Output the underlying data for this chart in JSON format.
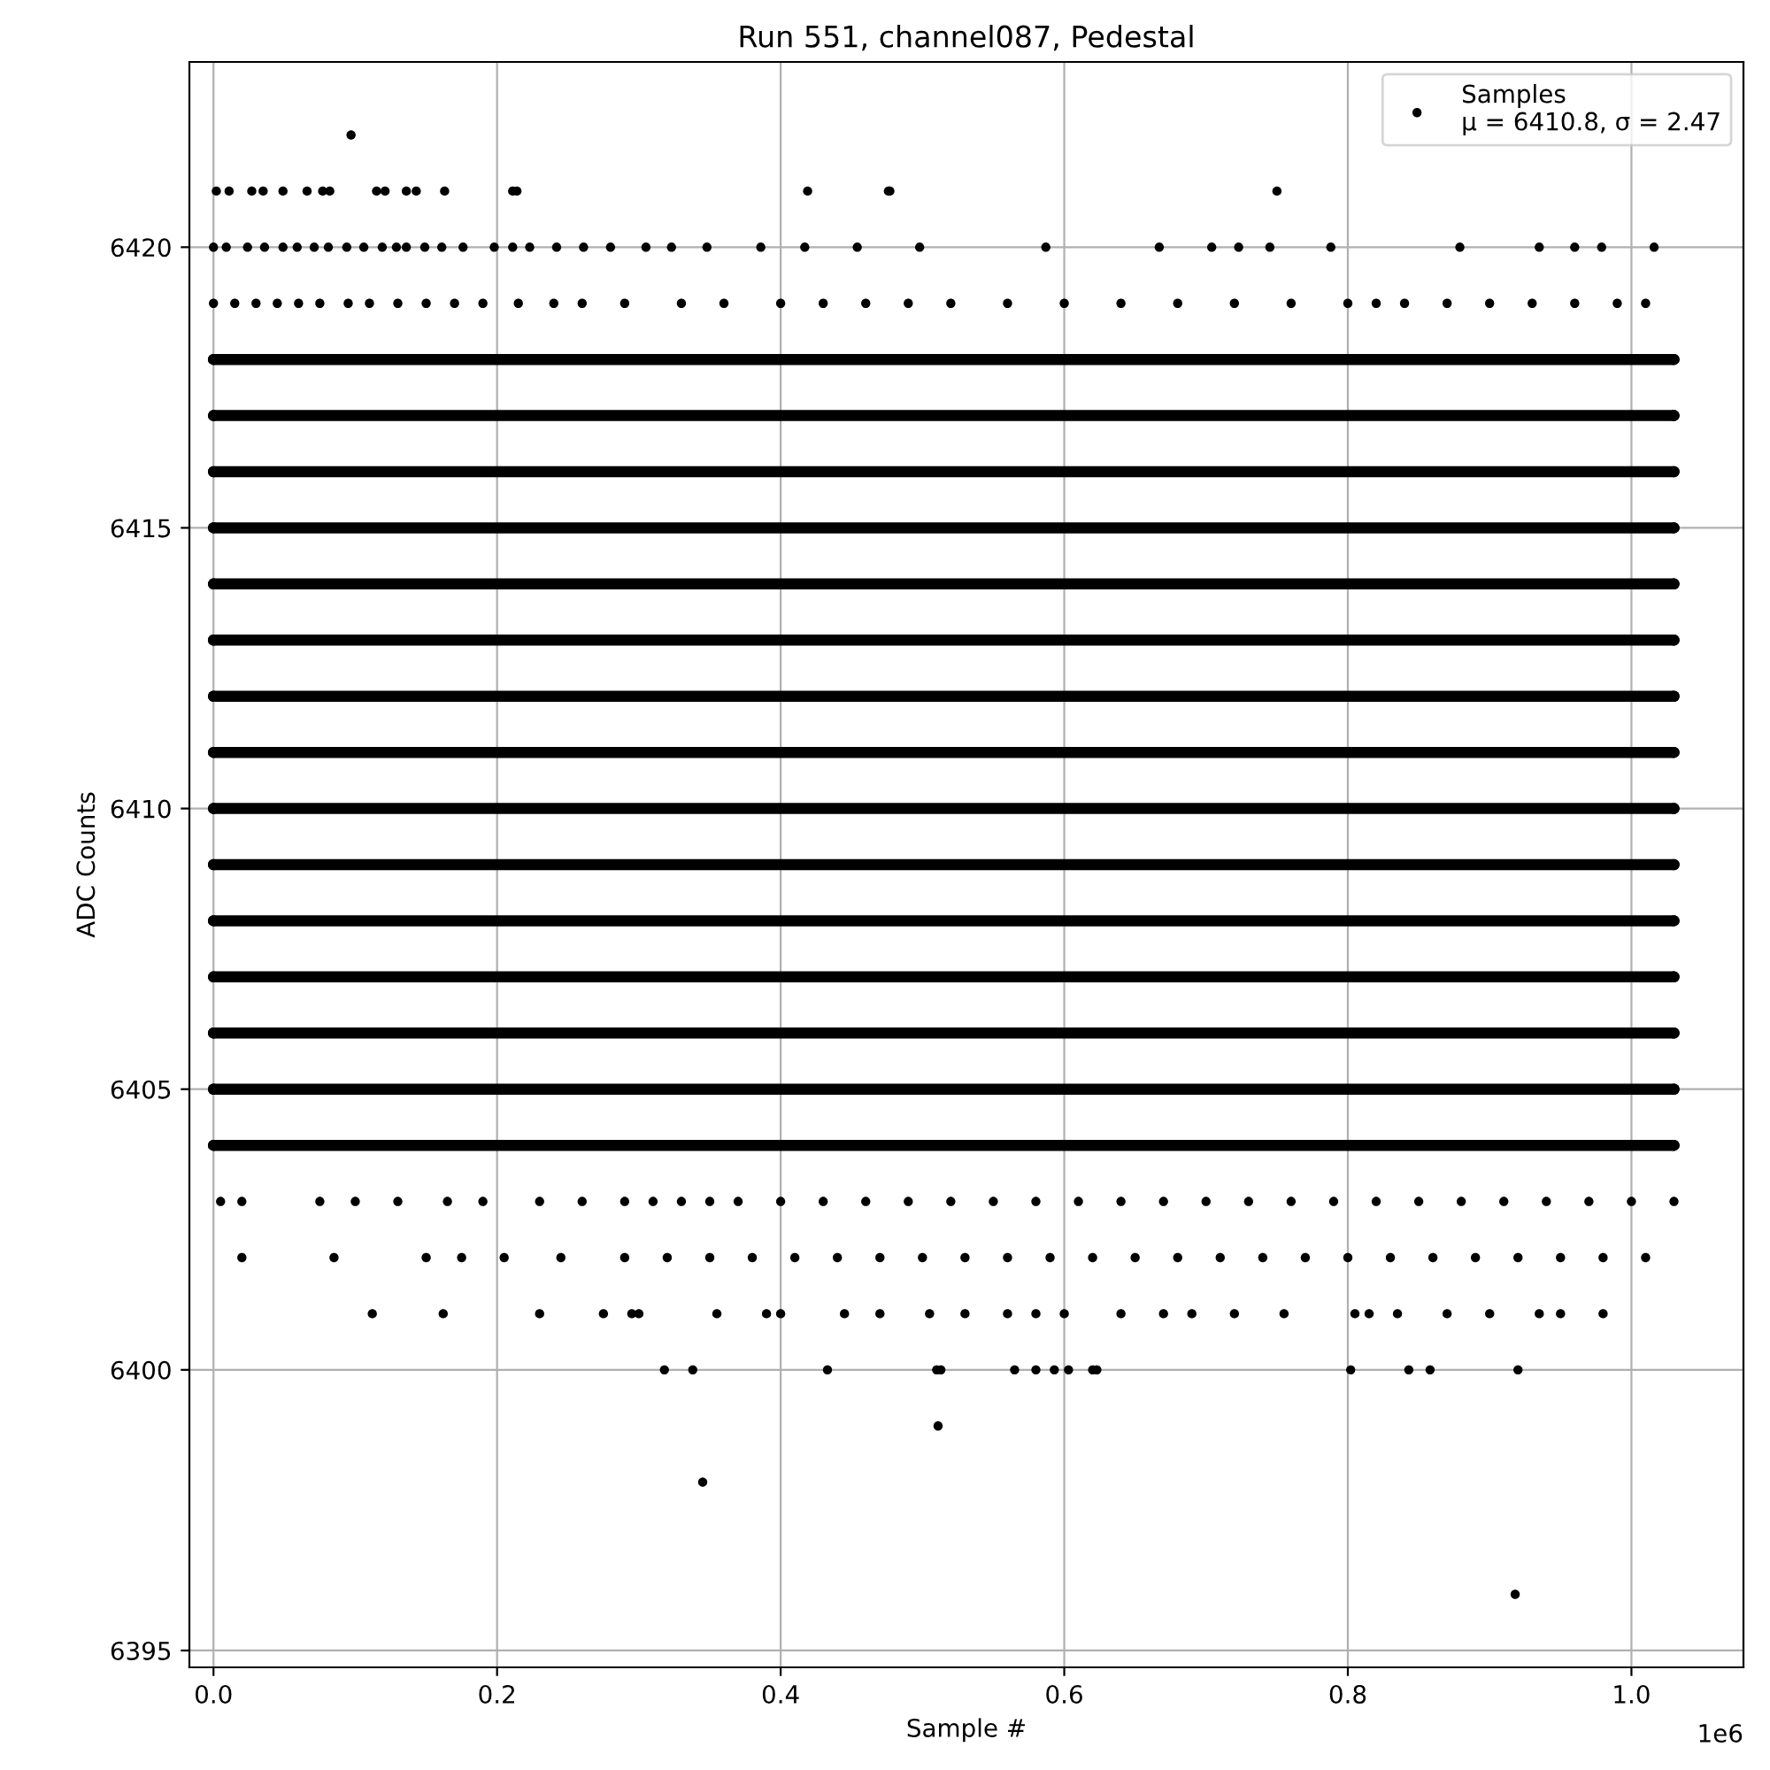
{
  "chart_data": {
    "type": "scatter",
    "title": "Run 551, channel087, Pedestal",
    "xlabel": "Sample #",
    "ylabel": "ADC Counts",
    "xlim": [
      -0.017,
      1.079
    ],
    "ylim": [
      6394.7,
      6423.3
    ],
    "xticks": [
      {
        "value": 0,
        "label": "0.0"
      },
      0.2,
      0.4,
      0.6,
      0.8,
      {
        "value": 1,
        "label": "1.0"
      }
    ],
    "yticks": [
      6395,
      6400,
      6405,
      6410,
      6415,
      6420
    ],
    "annotations": [
      "1e6"
    ],
    "grid": true,
    "legend": "top right",
    "marker": "circle",
    "series": [
      {
        "name": "Samples\nμ = 6410.8, σ = 2.47",
        "color": "#000000",
        "x": [
          0.097,
          0.002,
          0.011,
          0.027,
          0.035,
          0.049,
          0.066,
          0.077,
          0.082,
          0.115,
          0.121,
          0.136,
          0.143,
          0.163,
          0.211,
          0.214,
          0.419,
          0.476,
          0.477,
          0.75,
          0,
          0.009,
          0.024,
          0.036,
          0.049,
          0.059,
          0.071,
          0.081,
          0.094,
          0.106,
          0.119,
          0.129,
          0.136,
          0.149,
          0.161,
          0.176,
          0.198,
          0.211,
          0.223,
          0.242,
          0.261,
          0.28,
          0.305,
          0.323,
          0.348,
          0.386,
          0.417,
          0.454,
          0.498,
          0.587,
          0.667,
          0.704,
          0.723,
          0.745,
          0.788,
          0.879,
          0.935,
          0.96,
          0.979,
          1.016,
          0,
          0.015,
          0.03,
          0.045,
          0.06,
          0.075,
          0.095,
          0.11,
          0.13,
          0.15,
          0.17,
          0.19,
          0.215,
          0.24,
          0.26,
          0.29,
          0.33,
          0.36,
          0.4,
          0.43,
          0.46,
          0.49,
          0.52,
          0.56,
          0.6,
          0.64,
          0.68,
          0.72,
          0.76,
          0.8,
          0.82,
          0.84,
          0.87,
          0.9,
          0.93,
          0.96,
          0.99,
          1.01,
          0.005,
          0.02,
          0.075,
          0.1,
          0.13,
          0.165,
          0.19,
          0.23,
          0.26,
          0.29,
          0.31,
          0.33,
          0.35,
          0.37,
          0.4,
          0.43,
          0.46,
          0.49,
          0.52,
          0.55,
          0.58,
          0.61,
          0.64,
          0.67,
          0.7,
          0.73,
          0.76,
          0.79,
          0.82,
          0.85,
          0.88,
          0.91,
          0.94,
          0.97,
          1.0,
          1.03,
          0.02,
          0.085,
          0.15,
          0.175,
          0.205,
          0.245,
          0.29,
          0.32,
          0.35,
          0.38,
          0.41,
          0.44,
          0.47,
          0.5,
          0.53,
          0.56,
          0.59,
          0.62,
          0.65,
          0.68,
          0.71,
          0.74,
          0.77,
          0.8,
          0.83,
          0.86,
          0.89,
          0.92,
          0.95,
          0.98,
          1.01,
          0.112,
          0.162,
          0.23,
          0.275,
          0.295,
          0.3,
          0.355,
          0.39,
          0.4,
          0.445,
          0.47,
          0.505,
          0.53,
          0.56,
          0.58,
          0.6,
          0.64,
          0.67,
          0.69,
          0.72,
          0.755,
          0.805,
          0.815,
          0.835,
          0.87,
          0.9,
          0.935,
          0.95,
          0.98,
          0.318,
          0.338,
          0.433,
          0.51,
          0.513,
          0.565,
          0.58,
          0.593,
          0.603,
          0.62,
          0.623,
          0.802,
          0.843,
          0.858,
          0.92,
          0.511,
          0.345,
          0.918
        ],
        "values": [
          6422,
          6421,
          6421,
          6421,
          6421,
          6421,
          6421,
          6421,
          6421,
          6421,
          6421,
          6421,
          6421,
          6421,
          6421,
          6421,
          6421,
          6421,
          6421,
          6421,
          6420,
          6420,
          6420,
          6420,
          6420,
          6420,
          6420,
          6420,
          6420,
          6420,
          6420,
          6420,
          6420,
          6420,
          6420,
          6420,
          6420,
          6420,
          6420,
          6420,
          6420,
          6420,
          6420,
          6420,
          6420,
          6420,
          6420,
          6420,
          6420,
          6420,
          6420,
          6420,
          6420,
          6420,
          6420,
          6420,
          6420,
          6420,
          6420,
          6420,
          6419,
          6419,
          6419,
          6419,
          6419,
          6419,
          6419,
          6419,
          6419,
          6419,
          6419,
          6419,
          6419,
          6419,
          6419,
          6419,
          6419,
          6419,
          6419,
          6419,
          6419,
          6419,
          6419,
          6419,
          6419,
          6419,
          6419,
          6419,
          6419,
          6419,
          6419,
          6419,
          6419,
          6419,
          6419,
          6419,
          6419,
          6419,
          6403,
          6403,
          6403,
          6403,
          6403,
          6403,
          6403,
          6403,
          6403,
          6403,
          6403,
          6403,
          6403,
          6403,
          6403,
          6403,
          6403,
          6403,
          6403,
          6403,
          6403,
          6403,
          6403,
          6403,
          6403,
          6403,
          6403,
          6403,
          6403,
          6403,
          6403,
          6403,
          6403,
          6403,
          6403,
          6403,
          6402,
          6402,
          6402,
          6402,
          6402,
          6402,
          6402,
          6402,
          6402,
          6402,
          6402,
          6402,
          6402,
          6402,
          6402,
          6402,
          6402,
          6402,
          6402,
          6402,
          6402,
          6402,
          6402,
          6402,
          6402,
          6402,
          6402,
          6402,
          6402,
          6402,
          6402,
          6401,
          6401,
          6401,
          6401,
          6401,
          6401,
          6401,
          6401,
          6401,
          6401,
          6401,
          6401,
          6401,
          6401,
          6401,
          6401,
          6401,
          6401,
          6401,
          6401,
          6401,
          6401,
          6401,
          6401,
          6401,
          6401,
          6401,
          6401,
          6401,
          6400,
          6400,
          6400,
          6400,
          6400,
          6400,
          6400,
          6400,
          6400,
          6400,
          6400,
          6400,
          6400,
          6400,
          6400,
          6399,
          6398,
          6396
        ]
      },
      {
        "color": "#000000",
        "type": "line",
        "x": [
          0,
          1.03
        ],
        "values": [
          6404,
          6404
        ]
      },
      {
        "color": "#000000",
        "type": "line",
        "x": [
          0,
          1.03
        ],
        "values": [
          6405,
          6405
        ]
      },
      {
        "color": "#000000",
        "type": "line",
        "x": [
          0,
          1.03
        ],
        "values": [
          6406,
          6406
        ]
      },
      {
        "color": "#000000",
        "type": "line",
        "x": [
          0,
          1.03
        ],
        "values": [
          6407,
          6407
        ]
      },
      {
        "color": "#000000",
        "type": "line",
        "x": [
          0,
          1.03
        ],
        "values": [
          6408,
          6408
        ]
      },
      {
        "color": "#000000",
        "type": "line",
        "x": [
          0,
          1.03
        ],
        "values": [
          6409,
          6409
        ]
      },
      {
        "color": "#000000",
        "type": "line",
        "x": [
          0,
          1.03
        ],
        "values": [
          6410,
          6410
        ]
      },
      {
        "color": "#000000",
        "type": "line",
        "x": [
          0,
          1.03
        ],
        "values": [
          6411,
          6411
        ]
      },
      {
        "color": "#000000",
        "type": "line",
        "x": [
          0,
          1.03
        ],
        "values": [
          6412,
          6412
        ]
      },
      {
        "color": "#000000",
        "type": "line",
        "x": [
          0,
          1.03
        ],
        "values": [
          6413,
          6413
        ]
      },
      {
        "color": "#000000",
        "type": "line",
        "x": [
          0,
          1.03
        ],
        "values": [
          6414,
          6414
        ]
      },
      {
        "color": "#000000",
        "type": "line",
        "x": [
          0,
          1.03
        ],
        "values": [
          6415,
          6415
        ]
      },
      {
        "color": "#000000",
        "type": "line",
        "x": [
          0,
          1.03
        ],
        "values": [
          6416,
          6416
        ]
      },
      {
        "color": "#000000",
        "type": "line",
        "x": [
          0,
          1.03
        ],
        "values": [
          6417,
          6417
        ]
      },
      {
        "color": "#000000",
        "type": "line",
        "x": [
          0,
          1.03
        ],
        "values": [
          6418,
          6418
        ]
      }
    ]
  }
}
